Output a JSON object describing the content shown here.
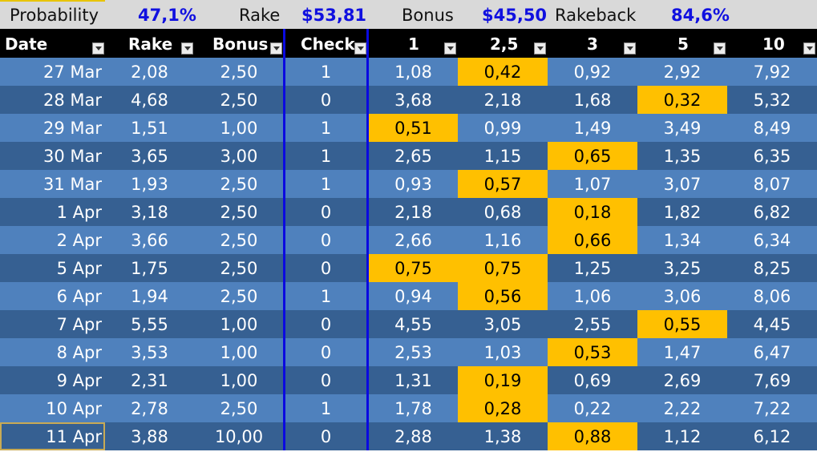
{
  "summary": {
    "probability_label": "Probability",
    "probability_value": "47,1%",
    "rake_label": "Rake",
    "rake_value": "$53,81",
    "bonus_label": "Bonus",
    "bonus_value": "$45,50",
    "rakeback_label": "Rakeback",
    "rakeback_value": "84,6%"
  },
  "headers": [
    "Date",
    "Rake",
    "Bonus",
    "Check",
    "1",
    "2,5",
    "3",
    "5",
    "10"
  ],
  "rows": [
    {
      "date": "27 Mar",
      "rake": "2,08",
      "bonus": "2,50",
      "check": "1",
      "c1": "1,08",
      "c25": "0,42",
      "c3": "0,92",
      "c5": "2,92",
      "c10": "7,92",
      "highlight": [
        "c25"
      ]
    },
    {
      "date": "28 Mar",
      "rake": "4,68",
      "bonus": "2,50",
      "check": "0",
      "c1": "3,68",
      "c25": "2,18",
      "c3": "1,68",
      "c5": "0,32",
      "c10": "5,32",
      "highlight": [
        "c5"
      ]
    },
    {
      "date": "29 Mar",
      "rake": "1,51",
      "bonus": "1,00",
      "check": "1",
      "c1": "0,51",
      "c25": "0,99",
      "c3": "1,49",
      "c5": "3,49",
      "c10": "8,49",
      "highlight": [
        "c1"
      ]
    },
    {
      "date": "30 Mar",
      "rake": "3,65",
      "bonus": "3,00",
      "check": "1",
      "c1": "2,65",
      "c25": "1,15",
      "c3": "0,65",
      "c5": "1,35",
      "c10": "6,35",
      "highlight": [
        "c3"
      ]
    },
    {
      "date": "31 Mar",
      "rake": "1,93",
      "bonus": "2,50",
      "check": "1",
      "c1": "0,93",
      "c25": "0,57",
      "c3": "1,07",
      "c5": "3,07",
      "c10": "8,07",
      "highlight": [
        "c25"
      ]
    },
    {
      "date": "1 Apr",
      "rake": "3,18",
      "bonus": "2,50",
      "check": "0",
      "c1": "2,18",
      "c25": "0,68",
      "c3": "0,18",
      "c5": "1,82",
      "c10": "6,82",
      "highlight": [
        "c3"
      ]
    },
    {
      "date": "2 Apr",
      "rake": "3,66",
      "bonus": "2,50",
      "check": "0",
      "c1": "2,66",
      "c25": "1,16",
      "c3": "0,66",
      "c5": "1,34",
      "c10": "6,34",
      "highlight": [
        "c3"
      ]
    },
    {
      "date": "5 Apr",
      "rake": "1,75",
      "bonus": "2,50",
      "check": "0",
      "c1": "0,75",
      "c25": "0,75",
      "c3": "1,25",
      "c5": "3,25",
      "c10": "8,25",
      "highlight": [
        "c1",
        "c25"
      ]
    },
    {
      "date": "6 Apr",
      "rake": "1,94",
      "bonus": "2,50",
      "check": "1",
      "c1": "0,94",
      "c25": "0,56",
      "c3": "1,06",
      "c5": "3,06",
      "c10": "8,06",
      "highlight": [
        "c25"
      ]
    },
    {
      "date": "7 Apr",
      "rake": "5,55",
      "bonus": "1,00",
      "check": "0",
      "c1": "4,55",
      "c25": "3,05",
      "c3": "2,55",
      "c5": "0,55",
      "c10": "4,45",
      "highlight": [
        "c5"
      ]
    },
    {
      "date": "8 Apr",
      "rake": "3,53",
      "bonus": "1,00",
      "check": "0",
      "c1": "2,53",
      "c25": "1,03",
      "c3": "0,53",
      "c5": "1,47",
      "c10": "6,47",
      "highlight": [
        "c3"
      ]
    },
    {
      "date": "9 Apr",
      "rake": "2,31",
      "bonus": "1,00",
      "check": "0",
      "c1": "1,31",
      "c25": "0,19",
      "c3": "0,69",
      "c5": "2,69",
      "c10": "7,69",
      "highlight": [
        "c25"
      ]
    },
    {
      "date": "10 Apr",
      "rake": "2,78",
      "bonus": "2,50",
      "check": "1",
      "c1": "1,78",
      "c25": "0,28",
      "c3": "0,22",
      "c5": "2,22",
      "c10": "7,22",
      "highlight": [
        "c25"
      ]
    },
    {
      "date": "11 Apr",
      "rake": "3,88",
      "bonus": "10,00",
      "check": "0",
      "c1": "2,88",
      "c25": "1,38",
      "c3": "0,88",
      "c5": "1,12",
      "c10": "6,12",
      "highlight": [
        "c3"
      ]
    }
  ],
  "colors": {
    "row_odd": "#4f81bd",
    "row_even": "#366092",
    "highlight": "#ffc000",
    "header_bg": "#000000",
    "summary_bg": "#d9d9d9",
    "summary_value": "#1010e0",
    "divider": "#0a0ae0"
  },
  "icons": {
    "filter_button": "dropdown-arrow-icon"
  }
}
